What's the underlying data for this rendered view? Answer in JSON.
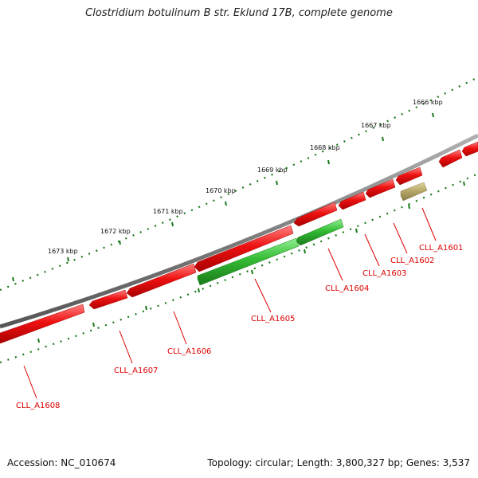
{
  "title": "Clostridium botulinum B str. Eklund 17B, complete genome",
  "accession": "Accession: NC_010674",
  "topology": "Topology: circular; Length: 3,800,327 bp; Genes: 3,537",
  "scale_labels": [
    "1666 kbp",
    "1667 kbp",
    "1668 kbp",
    "1669 kbp",
    "1670 kbp",
    "1671 kbp",
    "1672 kbp",
    "1673 kbp"
  ],
  "genes": [
    {
      "name": "CLL_A1601",
      "strand": "minus",
      "color": "#b8a86a"
    },
    {
      "name": "CLL_A1602",
      "strand": "plus",
      "color": "#ee1111"
    },
    {
      "name": "CLL_A1603",
      "strand": "plus",
      "color": "#ee1111"
    },
    {
      "name": "CLL_A1604",
      "strand": "minus",
      "color": "#33bb33"
    },
    {
      "name": "CLL_A1605",
      "strand": "minus",
      "color": "#33bb33"
    },
    {
      "name": "CLL_A1606",
      "strand": "plus",
      "color": "#ee1111"
    },
    {
      "name": "CLL_A1607",
      "strand": "plus",
      "color": "#ee1111"
    },
    {
      "name": "CLL_A1608",
      "strand": "plus",
      "color": "#ee1111"
    }
  ],
  "colors": {
    "backbone": "#808080",
    "ticks": "#1a7a1a",
    "gene_plus": "#ee1111",
    "gene_minus": "#33bb33",
    "label": "#dd0000"
  }
}
